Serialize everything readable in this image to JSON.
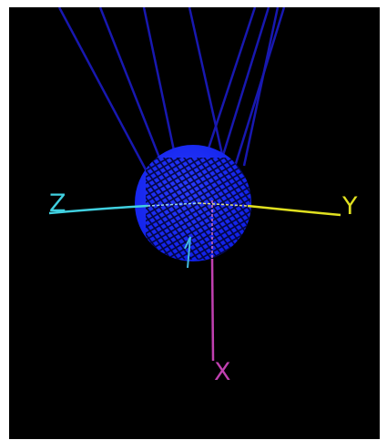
{
  "scene": {
    "background": "#000000",
    "axes": [
      {
        "name": "x",
        "label": "X",
        "color": "#c040b0"
      },
      {
        "name": "y",
        "label": "Y",
        "color": "#e0e020"
      },
      {
        "name": "z",
        "label": "Z",
        "color": "#40d0e0"
      }
    ],
    "sphere": {
      "fill": "#1020f0",
      "wireframe": "#000022",
      "style": "wireframe"
    },
    "cable_color": "#1818b0",
    "cable_count": 7
  }
}
